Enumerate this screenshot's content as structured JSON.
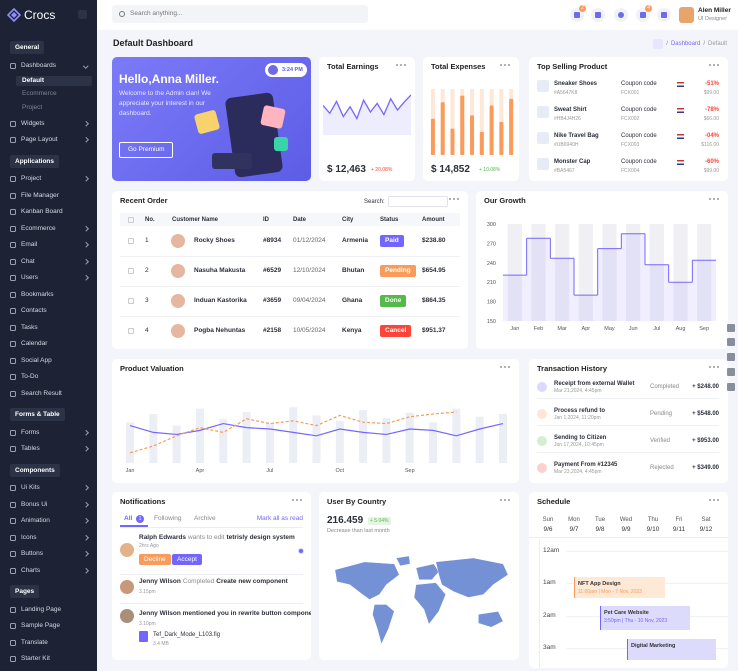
{
  "sidebar": {
    "brand": "Crocs",
    "sections": [
      {
        "title": "General",
        "items": [
          {
            "label": "Dashboards",
            "expandable": true,
            "sub": [
              "Default",
              "Ecommerce",
              "Project"
            ]
          },
          {
            "label": "Widgets",
            "expandable": true
          },
          {
            "label": "Page Layout",
            "expandable": true
          }
        ]
      },
      {
        "title": "Applications",
        "items": [
          {
            "label": "Project",
            "expandable": true
          },
          {
            "label": "File Manager"
          },
          {
            "label": "Kanban Board"
          },
          {
            "label": "Ecommerce",
            "expandable": true
          },
          {
            "label": "Email",
            "expandable": true
          },
          {
            "label": "Chat",
            "expandable": true
          },
          {
            "label": "Users",
            "expandable": true
          },
          {
            "label": "Bookmarks"
          },
          {
            "label": "Contacts"
          },
          {
            "label": "Tasks"
          },
          {
            "label": "Calendar"
          },
          {
            "label": "Social App"
          },
          {
            "label": "To-Do"
          },
          {
            "label": "Search Result"
          }
        ]
      },
      {
        "title": "Forms & Table",
        "items": [
          {
            "label": "Forms",
            "expandable": true
          },
          {
            "label": "Tables",
            "expandable": true
          }
        ]
      },
      {
        "title": "Components",
        "items": [
          {
            "label": "Ui Kits",
            "expandable": true
          },
          {
            "label": "Bonus Ui",
            "expandable": true
          },
          {
            "label": "Animation",
            "expandable": true
          },
          {
            "label": "Icons",
            "expandable": true
          },
          {
            "label": "Buttons",
            "expandable": true
          },
          {
            "label": "Charts",
            "expandable": true
          }
        ]
      },
      {
        "title": "Pages",
        "items": [
          {
            "label": "Landing Page"
          },
          {
            "label": "Sample Page"
          },
          {
            "label": "Translate"
          },
          {
            "label": "Starter Kit"
          }
        ]
      }
    ]
  },
  "topbar": {
    "search_placeholder": "Search anything...",
    "notification_badge": "2",
    "message_badge": "4",
    "user": {
      "name": "Alen Miller",
      "role": "UI Designer"
    }
  },
  "page": {
    "title": "Default Dashboard",
    "separator": "/",
    "breadcrumb": [
      "Dashboard",
      "Default"
    ]
  },
  "welcome": {
    "title": "Hello,Anna Miller.",
    "text": "Welcome to the Admin clan! We appreciate your interest in our dashboard.",
    "button": "Go Premium",
    "time": "3:24 PM"
  },
  "earnings": {
    "title": "Total Earnings",
    "value": "$ 12,463",
    "change": "+ 20.08%",
    "chart": {
      "type": "line",
      "color": "#7366ff",
      "values": [
        42,
        30,
        48,
        25,
        40,
        22,
        50,
        32,
        45,
        28,
        52,
        35,
        47,
        58
      ],
      "ylim": [
        0,
        70
      ]
    }
  },
  "expenses": {
    "title": "Total Expenses",
    "value": "$ 14,852",
    "change": "+ 10.08%",
    "chart": {
      "type": "bar",
      "color": "#f99b5a",
      "values": [
        55,
        80,
        40,
        90,
        60,
        35,
        75,
        50,
        85
      ],
      "ylim": [
        0,
        100
      ]
    }
  },
  "top_selling": {
    "title": "Top Selling Product",
    "coupon_label": "Coupon code",
    "products": [
      {
        "name": "Sneaker Shoes",
        "sku": "#A5647K8",
        "coupon": "FCK001",
        "discount": "-51%",
        "price": "$99.00"
      },
      {
        "name": "Sweat Shirt",
        "sku": "#HB4J4H26",
        "coupon": "FCX002",
        "discount": "-78%",
        "price": "$66.00"
      },
      {
        "name": "Nike Travel Bag",
        "sku": "#UB6940H",
        "coupon": "FCX003",
        "discount": "-04%",
        "price": "$116.00"
      },
      {
        "name": "Monster Cap",
        "sku": "#BA5467",
        "coupon": "FCX004",
        "discount": "-60%",
        "price": "$99.00"
      }
    ]
  },
  "recent_order": {
    "title": "Recent Order",
    "search_label": "Search:",
    "columns": [
      "No.",
      "Customer Name",
      "ID",
      "Date",
      "City",
      "Status",
      "Amount"
    ],
    "rows": [
      {
        "no": "1",
        "name": "Rocky Shoes",
        "id": "#8934",
        "date": "01/12/2024",
        "city": "Armenia",
        "status": "Paid",
        "status_color": "#7366ff",
        "amount": "$238.80"
      },
      {
        "no": "2",
        "name": "Nasuha Makusta",
        "id": "#6529",
        "date": "12/10/2024",
        "city": "Bhutan",
        "status": "Pending",
        "status_color": "#f99b5a",
        "amount": "$654.95"
      },
      {
        "no": "3",
        "name": "Induan Kastorika",
        "id": "#3659",
        "date": "09/04/2024",
        "city": "Ghana",
        "status": "Done",
        "status_color": "#54ba4a",
        "amount": "$864.35"
      },
      {
        "no": "4",
        "name": "Pogba Nehuntas",
        "id": "#2158",
        "date": "10/05/2024",
        "city": "Kenya",
        "status": "Cancel",
        "status_color": "#fc4438",
        "amount": "$951.37"
      }
    ]
  },
  "growth": {
    "title": "Our Growth",
    "chart": {
      "type": "step",
      "color": "#7366ff",
      "categories": [
        "Jan",
        "Feb",
        "Mar",
        "Apr",
        "May",
        "Jun",
        "Jul",
        "Aug",
        "Sep"
      ],
      "values": [
        221,
        278,
        247,
        190,
        262,
        285,
        237,
        210,
        244
      ],
      "ylim": [
        150,
        300
      ],
      "yticks": [
        300,
        270,
        240,
        210,
        180,
        150
      ]
    }
  },
  "valuation": {
    "title": "Product Valuation",
    "chart": {
      "type": "line",
      "categories": [
        "Jan",
        null,
        null,
        "Apr",
        null,
        null,
        "Jul",
        null,
        null,
        "Oct",
        null,
        null,
        "Sep",
        null,
        null,
        null,
        null
      ],
      "ylim": [
        0,
        100
      ],
      "bars": {
        "color": "#eceef5",
        "values": [
          60,
          72,
          55,
          80,
          65,
          75,
          58,
          82,
          70,
          62,
          78,
          66,
          74,
          60,
          80,
          68,
          72
        ]
      },
      "series": [
        {
          "color": "#7366ff",
          "values": [
            55,
            45,
            42,
            48,
            58,
            52,
            50,
            45,
            40,
            50,
            45,
            42,
            50,
            48,
            40,
            50,
            58
          ]
        },
        {
          "color": "#f99b5a",
          "dashed": true,
          "values": [
            15,
            25,
            40,
            52,
            45,
            65,
            58,
            62,
            55,
            70,
            60,
            58,
            68,
            72,
            75,
            null,
            null
          ]
        }
      ]
    }
  },
  "transactions": {
    "title": "Transaction History",
    "items": [
      {
        "title": "Receipt from external Wallet",
        "date": "Mar 21,2024, 4:45pm",
        "status": "Completed",
        "amount": "+ $248.00",
        "color": "#7366ff"
      },
      {
        "title": "Process refund to",
        "date": "Jan 1,2024, 11:20pm",
        "status": "Pending",
        "amount": "+ $548.00",
        "color": "#f99b5a"
      },
      {
        "title": "Sending to Citizen",
        "date": "Jun 17,2024, 10:45pm",
        "status": "Verified",
        "amount": "+ $953.00",
        "color": "#54ba4a"
      },
      {
        "title": "Payment From #12345",
        "date": "Mar 23,2024, 4:45pm",
        "status": "Rejected",
        "amount": "+ $349.00",
        "color": "#fc4438"
      }
    ]
  },
  "notifications": {
    "title": "Notifications",
    "tabs": [
      "All",
      "Following",
      "Archive"
    ],
    "all_count": "1",
    "mark_read": "Mark all as read",
    "items": [
      {
        "name": "Ralph Edwards",
        "action": "wants to edit",
        "target": "tetrisly design system",
        "time": "2hrs Ago",
        "decline": "Decline",
        "accept": "Accept"
      },
      {
        "name": "Jenny Wilson",
        "action": "Completed",
        "target": "Create new component",
        "time": "3.15pm"
      },
      {
        "text": "Jenny Wilson mentioned you in rewrite button component",
        "time": "3.10pm",
        "file": "Tef_Dark_Mode_L103.fig",
        "size": "3.4 MB"
      }
    ]
  },
  "country": {
    "title": "User By Country",
    "value": "216.459",
    "change": "+ 5.04%",
    "note": "Decrease than last month",
    "map_color": "#7491d6"
  },
  "schedule": {
    "title": "Schedule",
    "days": [
      {
        "name": "Sun",
        "date": "9/6"
      },
      {
        "name": "Mon",
        "date": "9/7"
      },
      {
        "name": "Tue",
        "date": "9/8"
      },
      {
        "name": "Wed",
        "date": "9/9"
      },
      {
        "name": "Thu",
        "date": "9/10"
      },
      {
        "name": "Fri",
        "date": "9/11"
      },
      {
        "name": "Sat",
        "date": "9/12"
      }
    ],
    "times": [
      "12am",
      "1am",
      "2am",
      "3am"
    ],
    "events": [
      {
        "title": "NFT App Design",
        "time": "11:00am | Mon - 7 Nov, 2023",
        "color": "#f99b5a",
        "bg": "#fde9d6"
      },
      {
        "title": "Pet Care Website",
        "time": "3:50pm | Thu - 10 Nov, 2023",
        "color": "#7366ff",
        "bg": "#dcdbfc"
      },
      {
        "title": "Digital Marketing",
        "color": "#7366ff",
        "bg": "#dcdbfc"
      }
    ]
  }
}
